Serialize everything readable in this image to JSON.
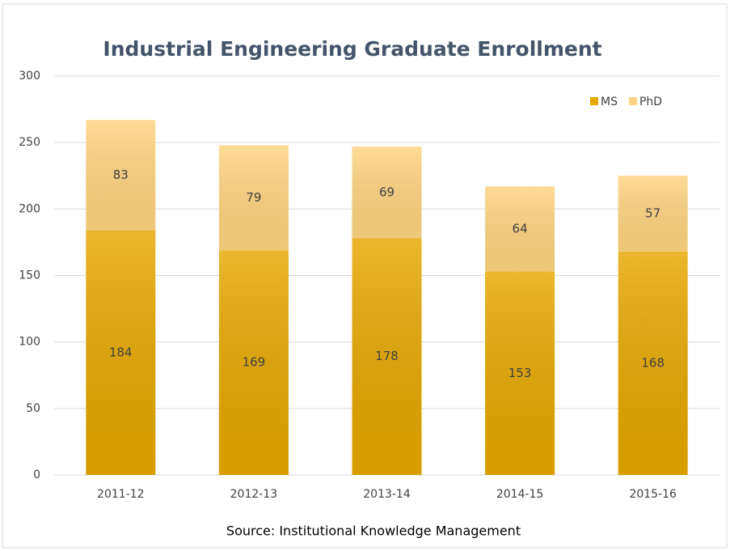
{
  "chart_data": {
    "type": "stacked_bar",
    "title": "Industrial Engineering Graduate Enrollment",
    "source": "Source: Institutional Knowledge Management",
    "categories": [
      "2011-12",
      "2012-13",
      "2013-14",
      "2014-15",
      "2015-16"
    ],
    "series": [
      {
        "name": "MS",
        "color": "#e6a700",
        "values": [
          184,
          169,
          178,
          153,
          168
        ]
      },
      {
        "name": "PhD",
        "color": "#ffd480",
        "values": [
          83,
          79,
          69,
          64,
          57
        ]
      }
    ],
    "ylim": [
      0,
      300
    ],
    "yticks": [
      0,
      50,
      100,
      150,
      200,
      250,
      300
    ],
    "grid": true,
    "legend": "top-right"
  }
}
